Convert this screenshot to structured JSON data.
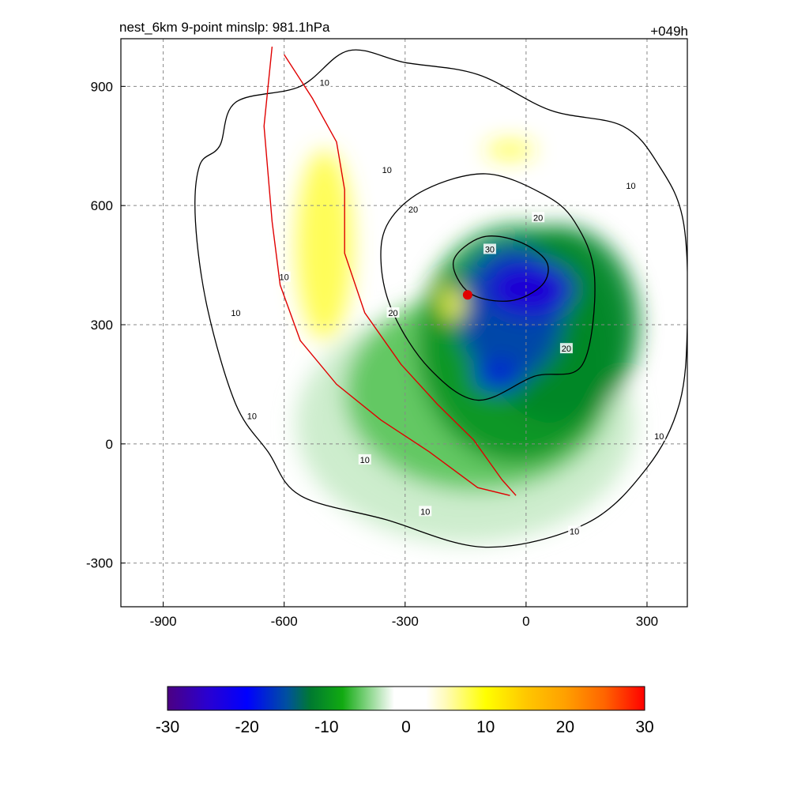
{
  "chart_data": {
    "type": "heatmap",
    "title": "nest_6km  9-point minslp: 981.1hPa",
    "forecast_hour": "+049h",
    "xlabel": "",
    "ylabel": "",
    "xlim": [
      -1005,
      400
    ],
    "ylim": [
      -410,
      1020
    ],
    "x_ticks": [
      -900,
      -600,
      -300,
      0,
      300
    ],
    "y_ticks": [
      -300,
      0,
      300,
      600,
      900
    ],
    "grid": true,
    "colorbar": {
      "range": [
        -30,
        30
      ],
      "ticks": [
        -30,
        -20,
        -10,
        0,
        10,
        20,
        30
      ],
      "stops": [
        {
          "value": -30,
          "color": "#4b0082"
        },
        {
          "value": -25,
          "color": "#2a00d0"
        },
        {
          "value": -20,
          "color": "#0000ff"
        },
        {
          "value": -15,
          "color": "#0050a0"
        },
        {
          "value": -12,
          "color": "#007a30"
        },
        {
          "value": -8,
          "color": "#11aa11"
        },
        {
          "value": -5,
          "color": "#7ed27e"
        },
        {
          "value": -3,
          "color": "#c9ebc9"
        },
        {
          "value": -1.5,
          "color": "#ffffff"
        },
        {
          "value": 2.5,
          "color": "#ffffff"
        },
        {
          "value": 5,
          "color": "#fffbb8"
        },
        {
          "value": 10,
          "color": "#ffff00"
        },
        {
          "value": 15,
          "color": "#ffc800"
        },
        {
          "value": 20,
          "color": "#ffa000"
        },
        {
          "value": 25,
          "color": "#ff6400"
        },
        {
          "value": 30,
          "color": "#ff0000"
        }
      ]
    },
    "field_blobs": [
      {
        "x": -150,
        "y": 50,
        "rx": 420,
        "ry": 300,
        "value": -3
      },
      {
        "x": -120,
        "y": 130,
        "rx": 330,
        "ry": 250,
        "value": -6
      },
      {
        "x": -20,
        "y": 250,
        "rx": 250,
        "ry": 300,
        "value": -10
      },
      {
        "x": 80,
        "y": 300,
        "rx": 200,
        "ry": 250,
        "value": -11
      },
      {
        "x": -40,
        "y": 330,
        "rx": 130,
        "ry": 170,
        "value": -16
      },
      {
        "x": 10,
        "y": 390,
        "rx": 110,
        "ry": 70,
        "value": -24
      },
      {
        "x": -70,
        "y": 170,
        "rx": 60,
        "ry": 40,
        "value": -18
      },
      {
        "x": -500,
        "y": 500,
        "rx": 70,
        "ry": 240,
        "value": 8
      },
      {
        "x": -40,
        "y": 740,
        "rx": 60,
        "ry": 20,
        "value": 9
      },
      {
        "x": -180,
        "y": 350,
        "rx": 30,
        "ry": 40,
        "value": 8
      }
    ],
    "contours": [
      {
        "level": 10,
        "points": [
          [
            -760,
            750
          ],
          [
            -720,
            860
          ],
          [
            -560,
            900
          ],
          [
            -440,
            990
          ],
          [
            -300,
            960
          ],
          [
            -120,
            930
          ],
          [
            60,
            840
          ],
          [
            240,
            800
          ],
          [
            330,
            700
          ],
          [
            390,
            560
          ],
          [
            400,
            300
          ],
          [
            380,
            100
          ],
          [
            300,
            -60
          ],
          [
            150,
            -200
          ],
          [
            -100,
            -260
          ],
          [
            -350,
            -190
          ],
          [
            -560,
            -130
          ],
          [
            -640,
            -20
          ],
          [
            -720,
            100
          ],
          [
            -790,
            340
          ],
          [
            -820,
            560
          ],
          [
            -810,
            700
          ]
        ],
        "labels": [
          [
            -500,
            910
          ],
          [
            -345,
            690
          ],
          [
            -600,
            420
          ],
          [
            -720,
            330
          ],
          [
            -680,
            70
          ],
          [
            -400,
            -40
          ],
          [
            -250,
            -170
          ],
          [
            120,
            -220
          ],
          [
            330,
            20
          ],
          [
            260,
            650
          ]
        ]
      },
      {
        "level": 20,
        "points": [
          [
            -340,
            560
          ],
          [
            -250,
            640
          ],
          [
            -100,
            680
          ],
          [
            40,
            630
          ],
          [
            120,
            560
          ],
          [
            170,
            420
          ],
          [
            140,
            200
          ],
          [
            20,
            170
          ],
          [
            -120,
            110
          ],
          [
            -240,
            190
          ],
          [
            -330,
            330
          ],
          [
            -360,
            460
          ]
        ],
        "labels": [
          [
            -280,
            590
          ],
          [
            -330,
            330
          ],
          [
            100,
            240
          ],
          [
            30,
            570
          ]
        ]
      },
      {
        "level": 30,
        "points": [
          [
            -180,
            460
          ],
          [
            -110,
            520
          ],
          [
            -20,
            510
          ],
          [
            50,
            460
          ],
          [
            40,
            400
          ],
          [
            -40,
            360
          ],
          [
            -140,
            380
          ]
        ],
        "labels": [
          [
            -90,
            490
          ]
        ]
      }
    ],
    "tracks": [
      {
        "name": "",
        "points": [
          [
            -630,
            1000
          ],
          [
            -640,
            900
          ],
          [
            -650,
            800
          ],
          [
            -640,
            680
          ],
          [
            -630,
            560
          ],
          [
            -610,
            400
          ],
          [
            -560,
            260
          ],
          [
            -470,
            150
          ],
          [
            -360,
            60
          ],
          [
            -240,
            -20
          ],
          [
            -120,
            -110
          ],
          [
            -40,
            -130
          ]
        ]
      },
      {
        "name": "",
        "points": [
          [
            -600,
            980
          ],
          [
            -530,
            870
          ],
          [
            -470,
            760
          ],
          [
            -450,
            640
          ],
          [
            -450,
            480
          ],
          [
            -400,
            330
          ],
          [
            -310,
            200
          ],
          [
            -220,
            100
          ],
          [
            -130,
            10
          ],
          [
            -60,
            -90
          ],
          [
            -25,
            -130
          ]
        ]
      }
    ],
    "storm_center": {
      "x": -145,
      "y": 375
    }
  }
}
